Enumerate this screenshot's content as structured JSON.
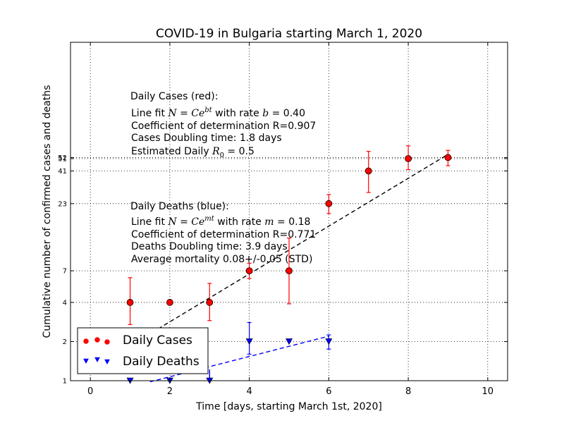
{
  "chart_data": {
    "type": "scatter",
    "title": "COVID-19 in Bulgaria starting March 1, 2020",
    "xlabel": "Time [days, starting March 1st, 2020]",
    "ylabel": "Cumulative number of confirmed cases and deaths",
    "xlim": [
      -0.5,
      10.5
    ],
    "ylim": [
      1,
      400
    ],
    "y_scale": "log",
    "grid": true,
    "x_ticks": [
      0,
      2,
      4,
      6,
      8,
      10
    ],
    "y_ticks": [
      1,
      2,
      4,
      7,
      23,
      41,
      51,
      52
    ],
    "y_tick_labels": [
      "1",
      "2",
      "4",
      "7",
      "23",
      "41",
      "51",
      "52"
    ],
    "legend": {
      "placement": "lower-left",
      "entries": [
        "Daily Cases",
        "Daily Deaths"
      ]
    },
    "series": [
      {
        "name": "Daily Cases",
        "color": "#ff0000",
        "marker": "circle",
        "x": [
          1,
          2,
          3,
          4,
          5,
          6,
          7,
          8,
          9
        ],
        "y": [
          4,
          4,
          4,
          7,
          7,
          23,
          41,
          51,
          52
        ],
        "err_low": [
          2.7,
          4,
          2.9,
          6.1,
          3.9,
          19.3,
          28,
          42,
          45
        ],
        "err_high": [
          6.2,
          4,
          5.6,
          8,
          12.5,
          27,
          58,
          64,
          59
        ]
      },
      {
        "name": "Daily Deaths",
        "color": "#0000ff",
        "marker": "triangle-down",
        "x": [
          1,
          2,
          3,
          4,
          5,
          6
        ],
        "y": [
          1,
          1,
          1,
          2,
          2,
          2
        ],
        "err_low": [
          1,
          1,
          1,
          1.6,
          2,
          1.75
        ],
        "err_high": [
          1,
          1,
          1,
          2.8,
          2,
          2.25
        ]
      }
    ],
    "fits": [
      {
        "name": "cases fit",
        "color": "#000000",
        "style": "dashed",
        "x": [
          1.4,
          9
        ],
        "y": [
          2.2,
          55
        ]
      },
      {
        "name": "deaths fit",
        "color": "#0000ff",
        "style": "dashed",
        "x": [
          1.5,
          6
        ],
        "y": [
          0.98,
          2.2
        ]
      }
    ],
    "annotations": {
      "cases": {
        "heading": "Daily Cases (red):",
        "line_fit_prefix": "Line fit ",
        "line_fit_formula": "N = Ce",
        "line_fit_exp": "bt",
        "line_fit_rate_prefix": " with rate ",
        "line_fit_rate_var": "b",
        "line_fit_rate_value": " = 0.40",
        "determination": "Coefficient of determination R=0.907",
        "doubling": "Cases Doubling time: 1.8 days",
        "r0_prefix": "Estimated Daily ",
        "r0_var": "R",
        "r0_sub": "0",
        "r0_value": " = 0.5"
      },
      "deaths": {
        "heading": "Daily Deaths (blue):",
        "line_fit_prefix": "Line fit ",
        "line_fit_formula": "N = Ce",
        "line_fit_exp": "mt",
        "line_fit_rate_prefix": " with rate ",
        "line_fit_rate_var": "m",
        "line_fit_rate_value": " = 0.18",
        "determination": "Coefficient of determination R=0.771",
        "doubling": "Deaths Doubling time: 3.9 days",
        "mortality": "Average mortality 0.08+/-0.05 (STD)"
      }
    }
  }
}
